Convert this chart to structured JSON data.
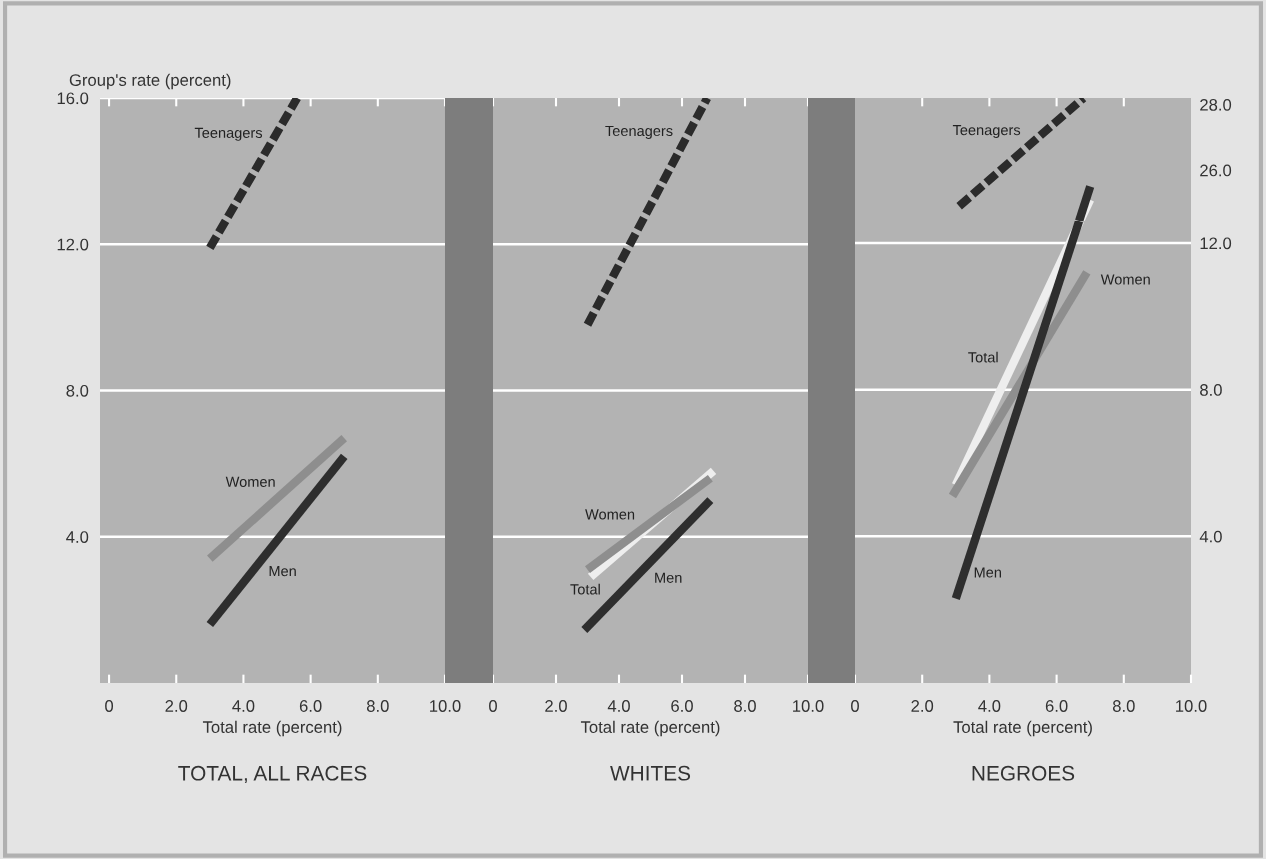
{
  "chart_data": [
    {
      "type": "line",
      "title": "TOTAL, ALL RACES",
      "xlabel": "Total rate (percent)",
      "ylabel": "Group's rate (percent)",
      "xlim": [
        -0.27,
        10.0
      ],
      "xticks": [
        0,
        {
          "value": 2,
          "label": "2.0"
        },
        {
          "value": 4,
          "label": "4.0"
        },
        {
          "value": 6,
          "label": "6.0"
        },
        {
          "value": 8,
          "label": "8.0"
        },
        {
          "value": 10,
          "label": "10.0"
        }
      ],
      "ylim": [
        0,
        16.0
      ],
      "yticks": [
        {
          "value": 4,
          "label": "4.0"
        },
        {
          "value": 8,
          "label": "8.0"
        },
        {
          "value": 12,
          "label": "12.0"
        },
        {
          "value": 16,
          "label": "16.0"
        }
      ],
      "grid": "y",
      "legend": false,
      "marker": "none",
      "series": [
        {
          "name": "Teenagers",
          "color": "#2b2b2b",
          "line_style": "dashed",
          "x": [
            3.0,
            5.6
          ],
          "values": [
            11.9,
            16.0
          ]
        },
        {
          "name": "Women",
          "color": "#8e8e8e",
          "line_style": "solid",
          "x": [
            3.0,
            7.0
          ],
          "values": [
            3.4,
            6.7
          ]
        },
        {
          "name": "Men",
          "color": "#2e2e2e",
          "line_style": "solid",
          "x": [
            3.0,
            7.0
          ],
          "values": [
            1.6,
            6.2
          ]
        }
      ]
    },
    {
      "type": "line",
      "title": "WHITES",
      "xlabel": "Total rate (percent)",
      "tick_labels": "x",
      "xlim": [
        0.0,
        10.0
      ],
      "xticks": [
        0,
        {
          "value": 2,
          "label": "2.0"
        },
        {
          "value": 4,
          "label": "4.0"
        },
        {
          "value": 6,
          "label": "6.0"
        },
        {
          "value": 8,
          "label": "8.0"
        },
        {
          "value": 10,
          "label": "10.0"
        }
      ],
      "ylim": [
        0,
        16.0
      ],
      "yticks": [
        {
          "value": 4,
          "label": null
        },
        {
          "value": 8,
          "label": null
        },
        {
          "value": 12,
          "label": null
        }
      ],
      "grid": "y",
      "legend": false,
      "marker": "none",
      "series": [
        {
          "name": "Teenagers",
          "color": "#2b2b2b",
          "line_style": "dashed",
          "x": [
            3.0,
            6.8
          ],
          "values": [
            9.8,
            16.0
          ]
        },
        {
          "name": "Total",
          "color": "#eeeeee",
          "line_style": "solid",
          "x": [
            3.1,
            7.0
          ],
          "values": [
            2.9,
            5.8
          ]
        },
        {
          "name": "Women",
          "color": "#8e8e8e",
          "line_style": "solid",
          "x": [
            3.0,
            6.9
          ],
          "values": [
            3.1,
            5.6
          ]
        },
        {
          "name": "Men",
          "color": "#2e2e2e",
          "line_style": "solid",
          "x": [
            2.9,
            6.9
          ],
          "values": [
            1.45,
            5.0
          ]
        }
      ]
    },
    {
      "type": "line",
      "tick_labels": "y",
      "xlim": [
        0.0,
        10.0
      ],
      "xticks": [
        {
          "value": 2,
          "label": null
        },
        {
          "value": 4,
          "label": null
        },
        {
          "value": 6,
          "label": null
        },
        {
          "value": 8,
          "label": null
        }
      ],
      "y2lim": [
        24.45,
        28.2
      ],
      "y2ticks": [
        {
          "value": 26,
          "label": "26.0"
        },
        {
          "value": 28,
          "label": "28.0"
        }
      ],
      "legend": false,
      "marker": "none",
      "series": [
        {
          "name": "Teenagers",
          "axis": "y2",
          "color": "#2b2b2b",
          "line_style": "dashed",
          "x": [
            3.1,
            6.8
          ],
          "values": [
            24.9,
            28.2
          ]
        },
        {
          "axis": "y2",
          "color": "#eeeeee",
          "line_style": "solid",
          "x": [
            6.7,
            7.0
          ],
          "values": [
            24.45,
            25.1
          ]
        },
        {
          "axis": "y2",
          "color": "#2e2e2e",
          "line_style": "solid",
          "x": [
            6.67,
            7.0
          ],
          "values": [
            24.45,
            25.5
          ]
        }
      ]
    },
    {
      "type": "line",
      "title": "NEGROES",
      "xlabel": "Total rate (percent)",
      "xlim": [
        0.0,
        10.0
      ],
      "xticks": [
        0,
        {
          "value": 2,
          "label": "2.0"
        },
        {
          "value": 4,
          "label": "4.0"
        },
        {
          "value": 6,
          "label": "6.0"
        },
        {
          "value": 8,
          "label": "8.0"
        },
        {
          "value": 10,
          "label": "10.0"
        }
      ],
      "y2lim": [
        0,
        12.6
      ],
      "y2ticks": [
        {
          "value": 4,
          "label": "4.0"
        },
        {
          "value": 8,
          "label": "8.0"
        },
        {
          "value": 12,
          "label": "12.0"
        }
      ],
      "grid": "y",
      "legend": false,
      "marker": "none",
      "series": [
        {
          "name": "Total",
          "axis": "y2",
          "color": "#eeeeee",
          "line_style": "solid",
          "x": [
            3.0,
            6.7
          ],
          "values": [
            5.4,
            12.6
          ]
        },
        {
          "name": "Women",
          "axis": "y2",
          "color": "#8e8e8e",
          "line_style": "solid",
          "x": [
            2.9,
            6.9
          ],
          "values": [
            5.1,
            11.2
          ]
        },
        {
          "name": "Men",
          "axis": "y2",
          "color": "#2e2e2e",
          "line_style": "solid",
          "x": [
            3.0,
            6.67
          ],
          "values": [
            2.3,
            12.6
          ]
        }
      ]
    }
  ]
}
